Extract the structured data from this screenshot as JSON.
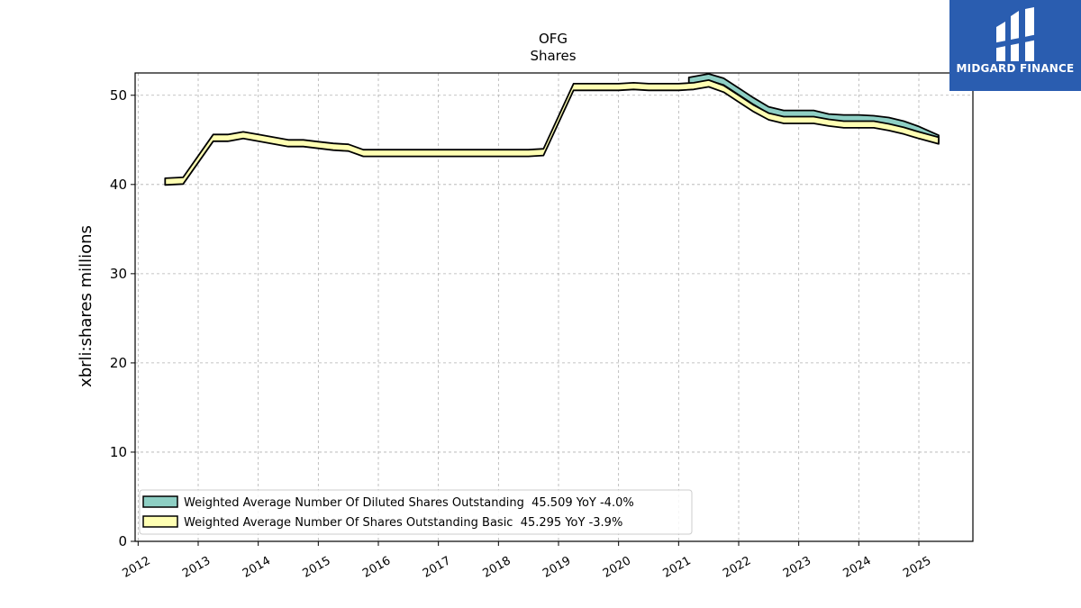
{
  "brand": {
    "name": "MIDGARD FINANCE",
    "color": "#2a5db0"
  },
  "chart_data": {
    "type": "area",
    "title": "OFG",
    "subtitle": "Shares",
    "ylabel": "xbrli:shares millions",
    "xlabel": "",
    "ylim": [
      0,
      52.5
    ],
    "xlim": [
      2011.95,
      2025.9
    ],
    "yticks": [
      0,
      10,
      20,
      30,
      40,
      50
    ],
    "xticks": [
      "2012",
      "2013",
      "2014",
      "2015",
      "2016",
      "2017",
      "2018",
      "2019",
      "2020",
      "2021",
      "2022",
      "2023",
      "2024",
      "2025"
    ],
    "grid": true,
    "legend_position": "lower-left",
    "series": [
      {
        "name": "Weighted Average Number Of Diluted Shares Outstanding  45.509 YoY -4.0%",
        "color": "#8ecfc4",
        "points": [
          [
            2021.17,
            52.0
          ],
          [
            2021.5,
            52.4
          ],
          [
            2021.75,
            51.9
          ],
          [
            2022.0,
            50.8
          ],
          [
            2022.25,
            49.7
          ],
          [
            2022.5,
            48.7
          ],
          [
            2022.75,
            48.3
          ],
          [
            2023.0,
            48.3
          ],
          [
            2023.25,
            48.3
          ],
          [
            2023.5,
            47.9
          ],
          [
            2023.75,
            47.8
          ],
          [
            2024.0,
            47.8
          ],
          [
            2024.25,
            47.7
          ],
          [
            2024.5,
            47.5
          ],
          [
            2024.75,
            47.1
          ],
          [
            2025.0,
            46.5
          ],
          [
            2025.33,
            45.509
          ]
        ]
      },
      {
        "name": "Weighted Average Number Of Shares Outstanding Basic  45.295 YoY -3.9%",
        "color": "#ffffb3",
        "points": [
          [
            2012.45,
            40.7
          ],
          [
            2012.75,
            40.8
          ],
          [
            2013.25,
            45.6
          ],
          [
            2013.5,
            45.6
          ],
          [
            2013.75,
            45.9
          ],
          [
            2014.0,
            45.6
          ],
          [
            2014.25,
            45.3
          ],
          [
            2014.5,
            45.0
          ],
          [
            2014.75,
            45.0
          ],
          [
            2015.0,
            44.8
          ],
          [
            2015.25,
            44.6
          ],
          [
            2015.5,
            44.5
          ],
          [
            2015.75,
            43.9
          ],
          [
            2016.0,
            43.9
          ],
          [
            2016.25,
            43.9
          ],
          [
            2016.5,
            43.9
          ],
          [
            2016.75,
            43.9
          ],
          [
            2017.0,
            43.9
          ],
          [
            2017.25,
            43.9
          ],
          [
            2017.5,
            43.9
          ],
          [
            2017.75,
            43.9
          ],
          [
            2018.0,
            43.9
          ],
          [
            2018.25,
            43.9
          ],
          [
            2018.5,
            43.9
          ],
          [
            2018.75,
            44.0
          ],
          [
            2019.25,
            51.3
          ],
          [
            2019.5,
            51.3
          ],
          [
            2019.75,
            51.3
          ],
          [
            2020.0,
            51.3
          ],
          [
            2020.25,
            51.4
          ],
          [
            2020.5,
            51.3
          ],
          [
            2020.75,
            51.3
          ],
          [
            2021.0,
            51.3
          ],
          [
            2021.25,
            51.4
          ],
          [
            2021.5,
            51.7
          ],
          [
            2021.75,
            51.1
          ],
          [
            2022.0,
            50.0
          ],
          [
            2022.25,
            48.9
          ],
          [
            2022.5,
            48.0
          ],
          [
            2022.75,
            47.6
          ],
          [
            2023.0,
            47.6
          ],
          [
            2023.25,
            47.6
          ],
          [
            2023.5,
            47.3
          ],
          [
            2023.75,
            47.1
          ],
          [
            2024.0,
            47.1
          ],
          [
            2024.25,
            47.1
          ],
          [
            2024.5,
            46.8
          ],
          [
            2024.75,
            46.4
          ],
          [
            2025.0,
            45.9
          ],
          [
            2025.33,
            45.295
          ]
        ]
      }
    ]
  }
}
